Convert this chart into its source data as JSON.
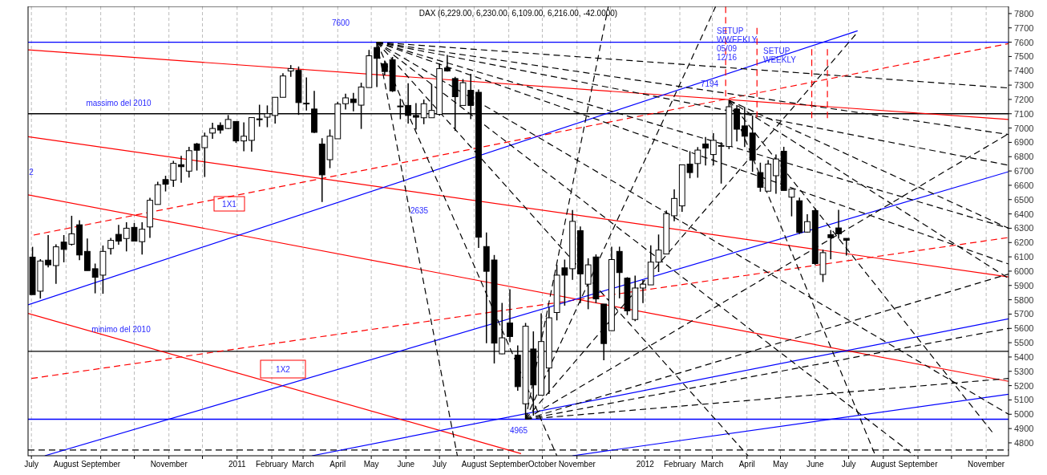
{
  "chart_data": {
    "type": "candlestick",
    "title": "DAX (6,229.00, 6,230.00, 6,109.00, 6,216.00, -42.0000)",
    "x": [
      "2010-07-02",
      "2010-07-09",
      "2010-07-16",
      "2010-07-23",
      "2010-07-30",
      "2010-08-06",
      "2010-08-13",
      "2010-08-20",
      "2010-08-27",
      "2010-09-03",
      "2010-09-10",
      "2010-09-17",
      "2010-09-24",
      "2010-10-01",
      "2010-10-08",
      "2010-10-15",
      "2010-10-22",
      "2010-10-29",
      "2010-11-05",
      "2010-11-12",
      "2010-11-19",
      "2010-11-26",
      "2010-12-03",
      "2010-12-10",
      "2010-12-17",
      "2010-12-24",
      "2010-12-31",
      "2011-01-07",
      "2011-01-14",
      "2011-01-21",
      "2011-01-28",
      "2011-02-04",
      "2011-02-11",
      "2011-02-18",
      "2011-02-25",
      "2011-03-04",
      "2011-03-11",
      "2011-03-18",
      "2011-03-25",
      "2011-04-01",
      "2011-04-08",
      "2011-04-15",
      "2011-04-22",
      "2011-04-29",
      "2011-05-06",
      "2011-05-13",
      "2011-05-20",
      "2011-05-27",
      "2011-06-03",
      "2011-06-10",
      "2011-06-17",
      "2011-06-24",
      "2011-07-01",
      "2011-07-08",
      "2011-07-15",
      "2011-07-22",
      "2011-07-29",
      "2011-08-05",
      "2011-08-12",
      "2011-08-19",
      "2011-08-26",
      "2011-09-02",
      "2011-09-09",
      "2011-09-16",
      "2011-09-23",
      "2011-09-30",
      "2011-10-07",
      "2011-10-14",
      "2011-10-21",
      "2011-10-28",
      "2011-11-04",
      "2011-11-11",
      "2011-11-18",
      "2011-11-25",
      "2011-12-02",
      "2011-12-09",
      "2011-12-16",
      "2011-12-23",
      "2011-12-30",
      "2012-01-06",
      "2012-01-13",
      "2012-01-20",
      "2012-01-27",
      "2012-02-03",
      "2012-02-10",
      "2012-02-17",
      "2012-02-24",
      "2012-03-02",
      "2012-03-09",
      "2012-03-16",
      "2012-03-23",
      "2012-03-30",
      "2012-04-06",
      "2012-04-13",
      "2012-04-20",
      "2012-04-27",
      "2012-05-04",
      "2012-05-11",
      "2012-05-18",
      "2012-05-25",
      "2012-06-01",
      "2012-06-08",
      "2012-06-15",
      "2012-06-22",
      "2012-06-29"
    ],
    "ohlc": [
      [
        6098,
        6170,
        5836,
        5836
      ],
      [
        5860,
        6084,
        5809,
        6071
      ],
      [
        6077,
        6252,
        6026,
        6044
      ],
      [
        6039,
        6188,
        5912,
        6170
      ],
      [
        6203,
        6252,
        6062,
        6152
      ],
      [
        6188,
        6387,
        6179,
        6261
      ],
      [
        6324,
        6355,
        6077,
        6113
      ],
      [
        6138,
        6228,
        6004,
        6004
      ],
      [
        6017,
        6053,
        5845,
        5957
      ],
      [
        5972,
        6179,
        5842,
        6138
      ],
      [
        6158,
        6233,
        6116,
        6215
      ],
      [
        6257,
        6324,
        6185,
        6210
      ],
      [
        6228,
        6342,
        6138,
        6300
      ],
      [
        6306,
        6336,
        6210,
        6210
      ],
      [
        6206,
        6342,
        6116,
        6293
      ],
      [
        6309,
        6513,
        6233,
        6495
      ],
      [
        6466,
        6625,
        6466,
        6604
      ],
      [
        6640,
        6667,
        6557,
        6607
      ],
      [
        6636,
        6771,
        6589,
        6753
      ],
      [
        6744,
        6806,
        6618,
        6730
      ],
      [
        6699,
        6869,
        6654,
        6842
      ],
      [
        6889,
        6896,
        6703,
        6845
      ],
      [
        6863,
        6968,
        6658,
        6943
      ],
      [
        6965,
        7037,
        6925,
        6997
      ],
      [
        7019,
        7040,
        6961,
        6986
      ],
      [
        6997,
        7091,
        6992,
        7060
      ],
      [
        7046,
        7046,
        6896,
        6910
      ],
      [
        6910,
        7040,
        6838,
        6943
      ],
      [
        6914,
        7076,
        6835,
        7073
      ],
      [
        7064,
        7163,
        7010,
        7064
      ],
      [
        7076,
        7158,
        7006,
        7100
      ],
      [
        7088,
        7215,
        7031,
        7215
      ],
      [
        7215,
        7383,
        7215,
        7364
      ],
      [
        7399,
        7440,
        7358,
        7415
      ],
      [
        7403,
        7430,
        7092,
        7178
      ],
      [
        7174,
        7354,
        7123,
        7174
      ],
      [
        7133,
        7260,
        6966,
        6970
      ],
      [
        6888,
        6929,
        6483,
        6673
      ],
      [
        6779,
        6990,
        6720,
        6943
      ],
      [
        6925,
        7184,
        6925,
        7168
      ],
      [
        7170,
        7240,
        7129,
        7211
      ],
      [
        7203,
        7246,
        7117,
        7178
      ],
      [
        7160,
        7317,
        6994,
        7287
      ],
      [
        7283,
        7546,
        7283,
        7505
      ],
      [
        7563,
        7600,
        7287,
        7487
      ],
      [
        7450,
        7471,
        7368,
        7395
      ],
      [
        7477,
        7497,
        7252,
        7260
      ],
      [
        7154,
        7205,
        7062,
        7154
      ],
      [
        7158,
        7313,
        7031,
        7088
      ],
      [
        7088,
        7174,
        6990,
        7076
      ],
      [
        7072,
        7199,
        7027,
        7170
      ],
      [
        7072,
        7307,
        7072,
        7123
      ],
      [
        7096,
        7450,
        7088,
        7415
      ],
      [
        7420,
        7511,
        7395,
        7399
      ],
      [
        7346,
        7358,
        6980,
        7219
      ],
      [
        7158,
        7342,
        7158,
        7317
      ],
      [
        7264,
        7379,
        7062,
        7158
      ],
      [
        7250,
        7270,
        6162,
        6237
      ],
      [
        6172,
        6270,
        5497,
        5999
      ],
      [
        6078,
        6113,
        5355,
        5497
      ],
      [
        5422,
        5778,
        5420,
        5534
      ],
      [
        5638,
        5873,
        5503,
        5543
      ],
      [
        5413,
        5481,
        5164,
        5193
      ],
      [
        5073,
        5638,
        4965,
        5615
      ],
      [
        5456,
        5579,
        4990,
        5205
      ],
      [
        5133,
        5705,
        5133,
        5508
      ],
      [
        5323,
        5747,
        5142,
        5674
      ],
      [
        5711,
        6044,
        5656,
        5972
      ],
      [
        6023,
        6081,
        5759,
        5972
      ],
      [
        6017,
        6427,
        5940,
        6348
      ],
      [
        6283,
        6312,
        5777,
        5981
      ],
      [
        5909,
        6090,
        5734,
        6044
      ],
      [
        6099,
        6117,
        5777,
        5806
      ],
      [
        5770,
        5770,
        5377,
        5494
      ],
      [
        5584,
        6171,
        5584,
        6081
      ],
      [
        6138,
        6171,
        5810,
        5990
      ],
      [
        5951,
        5958,
        5693,
        5723
      ],
      [
        5662,
        5969,
        5651,
        5882
      ],
      [
        5882,
        5938,
        5777,
        5909
      ],
      [
        5904,
        6180,
        5904,
        6063
      ],
      [
        6063,
        6256,
        5994,
        6147
      ],
      [
        6120,
        6424,
        6120,
        6402
      ],
      [
        6387,
        6572,
        6348,
        6508
      ],
      [
        6456,
        6743,
        6415,
        6743
      ],
      [
        6748,
        6838,
        6649,
        6689
      ],
      [
        6752,
        6867,
        6653,
        6846
      ],
      [
        6889,
        6937,
        6738,
        6860
      ],
      [
        6815,
        6964,
        6738,
        6914
      ],
      [
        6878,
        6901,
        6612,
        6878
      ],
      [
        6871,
        7194,
        6853,
        7149
      ],
      [
        7133,
        7160,
        6906,
        6992
      ],
      [
        7015,
        7146,
        6867,
        6943
      ],
      [
        6965,
        7088,
        6694,
        6775
      ],
      [
        6689,
        6758,
        6555,
        6586
      ],
      [
        6559,
        6776,
        6559,
        6748
      ],
      [
        6667,
        6816,
        6541,
        6784
      ],
      [
        6838,
        6869,
        6564,
        6564
      ],
      [
        6517,
        6573,
        6383,
        6573
      ],
      [
        6492,
        6514,
        6260,
        6270
      ],
      [
        6273,
        6398,
        6270,
        6346
      ],
      [
        6423,
        6441,
        6044,
        6053
      ],
      [
        5977,
        6150,
        5924,
        6129
      ],
      [
        6255,
        6287,
        6083,
        6234
      ],
      [
        6302,
        6429,
        6227,
        6261
      ],
      [
        6229,
        6230,
        6109,
        6216
      ]
    ],
    "xlim": [
      "2010-06-28",
      "2012-11-21"
    ],
    "xticks": [
      {
        "value": "2010-07-01",
        "label": "July"
      },
      {
        "value": "2010-08-01",
        "label": "August"
      },
      {
        "value": "2010-09-01",
        "label": "September"
      },
      {
        "value": "2010-10-01",
        "label": null
      },
      {
        "value": "2010-11-01",
        "label": "November"
      },
      {
        "value": "2010-12-01",
        "label": null
      },
      {
        "value": "2011-01-01",
        "label": "2011"
      },
      {
        "value": "2011-02-01",
        "label": "February"
      },
      {
        "value": "2011-03-01",
        "label": "March"
      },
      {
        "value": "2011-04-01",
        "label": "April"
      },
      {
        "value": "2011-05-01",
        "label": "May"
      },
      {
        "value": "2011-06-01",
        "label": "June"
      },
      {
        "value": "2011-07-01",
        "label": "July"
      },
      {
        "value": "2011-08-01",
        "label": "August"
      },
      {
        "value": "2011-09-01",
        "label": "September"
      },
      {
        "value": "2011-10-01",
        "label": "October"
      },
      {
        "value": "2011-11-01",
        "label": "November"
      },
      {
        "value": "2011-12-01",
        "label": null
      },
      {
        "value": "2012-01-01",
        "label": "2012"
      },
      {
        "value": "2012-02-01",
        "label": "February"
      },
      {
        "value": "2012-03-01",
        "label": "March"
      },
      {
        "value": "2012-04-01",
        "label": "April"
      },
      {
        "value": "2012-05-01",
        "label": "May"
      },
      {
        "value": "2012-06-01",
        "label": "June"
      },
      {
        "value": "2012-07-01",
        "label": "July"
      },
      {
        "value": "2012-08-01",
        "label": "August"
      },
      {
        "value": "2012-09-01",
        "label": "September"
      },
      {
        "value": "2012-10-01",
        "label": null
      },
      {
        "value": "2012-11-01",
        "label": "November"
      }
    ],
    "ylim": [
      4710,
      7850
    ],
    "yticks": [
      4800,
      4900,
      5000,
      5100,
      5200,
      5300,
      5400,
      5500,
      5600,
      5700,
      5800,
      5900,
      6000,
      6100,
      6200,
      6300,
      6400,
      6500,
      6600,
      6700,
      6800,
      6900,
      7000,
      7100,
      7200,
      7300,
      7400,
      7500,
      7600,
      7700,
      7800
    ],
    "grid": "x",
    "ref_lines": [
      {
        "axis": "y",
        "value": 7600,
        "color": "#0000ff",
        "line_style": "solid"
      },
      {
        "axis": "y",
        "value": 7100,
        "color": "#000000",
        "line_style": "solid"
      },
      {
        "axis": "y",
        "value": 5440,
        "color": "#000000",
        "line_style": "solid"
      },
      {
        "axis": "y",
        "value": 4965,
        "color": "#0000ff",
        "line_style": "solid"
      },
      {
        "axis": "y",
        "value": 4750,
        "color": "#000000",
        "line_style": "dashed"
      }
    ],
    "series": [
      {
        "type": "line",
        "color": "#ff0000",
        "line_style": "solid",
        "x": [
          "2010-06-28",
          "2012-11-21"
        ],
        "values": [
          7546,
          7060
        ]
      },
      {
        "type": "line",
        "color": "#ff0000",
        "line_style": "solid",
        "x": [
          "2010-06-28",
          "2012-11-21"
        ],
        "values": [
          6940,
          5960
        ]
      },
      {
        "type": "line",
        "color": "#ff0000",
        "line_style": "solid",
        "x": [
          "2010-06-28",
          "2012-11-21"
        ],
        "values": [
          6533,
          5230
        ]
      },
      {
        "type": "line",
        "color": "#ff0000",
        "line_style": "solid",
        "x": [
          "2010-06-28",
          "2011-09-12"
        ],
        "values": [
          5705,
          4725
        ]
      },
      {
        "type": "line",
        "color": "#ff0000",
        "line_style": "dashed",
        "x": [
          "2010-07-03",
          "2012-11-21"
        ],
        "values": [
          6252,
          7590
        ]
      },
      {
        "type": "line",
        "color": "#ff0000",
        "line_style": "dashed",
        "x": [
          "2010-07-01",
          "2012-11-21"
        ],
        "values": [
          5250,
          6235
        ]
      },
      {
        "type": "line",
        "color": "#0000ff",
        "line_style": "solid",
        "x": [
          "2010-06-28",
          "2012-07-09"
        ],
        "values": [
          5765,
          7680
        ]
      },
      {
        "type": "line",
        "color": "#0000ff",
        "line_style": "solid",
        "x": [
          "2010-07-13",
          "2012-11-21"
        ],
        "values": [
          4710,
          6695
        ]
      },
      {
        "type": "line",
        "color": "#0000ff",
        "line_style": "solid",
        "x": [
          "2011-03-09",
          "2012-11-21"
        ],
        "values": [
          4710,
          5667
        ]
      },
      {
        "type": "line",
        "color": "#0000ff",
        "line_style": "solid",
        "x": [
          "2011-10-28",
          "2012-11-21"
        ],
        "values": [
          4710,
          5140
        ]
      },
      {
        "type": "line",
        "color": "#000000",
        "line_style": "dashed",
        "x": [
          "2011-05-06",
          "2012-11-21"
        ],
        "values": [
          7600,
          7280
        ]
      },
      {
        "type": "line",
        "color": "#000000",
        "line_style": "dashed",
        "x": [
          "2011-05-06",
          "2012-11-21"
        ],
        "values": [
          7600,
          6955
        ]
      },
      {
        "type": "line",
        "color": "#000000",
        "line_style": "dashed",
        "x": [
          "2011-05-06",
          "2012-11-21"
        ],
        "values": [
          7600,
          6740
        ]
      },
      {
        "type": "line",
        "color": "#000000",
        "line_style": "dashed",
        "x": [
          "2011-05-06",
          "2012-11-21"
        ],
        "values": [
          7600,
          6300
        ]
      },
      {
        "type": "line",
        "color": "#000000",
        "line_style": "dashed",
        "x": [
          "2011-05-06",
          "2012-11-21"
        ],
        "values": [
          7600,
          6050
        ]
      },
      {
        "type": "line",
        "color": "#000000",
        "line_style": "dashed",
        "x": [
          "2011-05-06",
          "2012-11-21"
        ],
        "values": [
          7600,
          5000
        ]
      },
      {
        "type": "line",
        "color": "#000000",
        "line_style": "dashed",
        "x": [
          "2011-05-06",
          "2012-08-29"
        ],
        "values": [
          7600,
          4710
        ]
      },
      {
        "type": "line",
        "color": "#000000",
        "line_style": "dashed",
        "x": [
          "2011-05-06",
          "2012-04-02"
        ],
        "values": [
          7600,
          4710
        ]
      },
      {
        "type": "line",
        "color": "#000000",
        "line_style": "dashed",
        "x": [
          "2011-05-06",
          "2011-10-14"
        ],
        "values": [
          7600,
          4710
        ]
      },
      {
        "type": "line",
        "color": "#000000",
        "line_style": "dashed",
        "x": [
          "2011-05-06",
          "2011-07-17"
        ],
        "values": [
          7600,
          4710
        ]
      },
      {
        "type": "line",
        "color": "#000000",
        "line_style": "dashed",
        "x": [
          "2011-09-16",
          "2011-11-29"
        ],
        "values": [
          4965,
          7849
        ]
      },
      {
        "type": "line",
        "color": "#000000",
        "line_style": "dashed",
        "x": [
          "2011-09-16",
          "2012-03-04"
        ],
        "values": [
          4965,
          7849
        ]
      },
      {
        "type": "line",
        "color": "#000000",
        "line_style": "dashed",
        "x": [
          "2011-09-16",
          "2012-07-09"
        ],
        "values": [
          4965,
          7670
        ]
      },
      {
        "type": "line",
        "color": "#000000",
        "line_style": "dashed",
        "x": [
          "2011-09-16",
          "2012-11-21"
        ],
        "values": [
          4965,
          6960
        ]
      },
      {
        "type": "line",
        "color": "#000000",
        "line_style": "dashed",
        "x": [
          "2011-09-16",
          "2012-11-21"
        ],
        "values": [
          4965,
          5980
        ]
      },
      {
        "type": "line",
        "color": "#000000",
        "line_style": "dashed",
        "x": [
          "2011-09-16",
          "2012-11-21"
        ],
        "values": [
          4965,
          5600
        ]
      },
      {
        "type": "line",
        "color": "#000000",
        "line_style": "dashed",
        "x": [
          "2011-09-16",
          "2012-11-21"
        ],
        "values": [
          4965,
          5250
        ]
      },
      {
        "type": "line",
        "color": "#000000",
        "line_style": "dashed",
        "x": [
          "2012-03-16",
          "2012-11-21"
        ],
        "values": [
          7194,
          6300
        ]
      },
      {
        "type": "line",
        "color": "#000000",
        "line_style": "dashed",
        "x": [
          "2012-03-16",
          "2012-11-21"
        ],
        "values": [
          7194,
          5950
        ]
      },
      {
        "type": "line",
        "color": "#000000",
        "line_style": "dashed",
        "x": [
          "2012-03-16",
          "2012-11-08"
        ],
        "values": [
          7194,
          4860
        ]
      },
      {
        "type": "line",
        "color": "#000000",
        "line_style": "dashed",
        "x": [
          "2012-03-16",
          "2012-07-25"
        ],
        "values": [
          7194,
          4710
        ]
      },
      {
        "type": "line",
        "color": "#ff0000",
        "line_style": "dashed",
        "x": [
          "2012-03-13",
          "2012-03-13"
        ],
        "values": [
          7849,
          7220
        ]
      },
      {
        "type": "line",
        "color": "#ff0000",
        "line_style": "dashed",
        "x": [
          "2012-04-10",
          "2012-04-10"
        ],
        "values": [
          7700,
          7075
        ]
      },
      {
        "type": "line",
        "color": "#ff0000",
        "line_style": "dashed",
        "x": [
          "2012-05-29",
          "2012-05-29"
        ],
        "values": [
          7551,
          7064
        ]
      },
      {
        "type": "line",
        "color": "#ff0000",
        "line_style": "dashed",
        "x": [
          "2012-06-12",
          "2012-06-12"
        ],
        "values": [
          7551,
          7064
        ]
      }
    ],
    "annotations": [
      "7600",
      "massimo del 2010",
      "2",
      "1X1",
      "2635",
      "minimo del 2010",
      "1X2",
      "4965",
      "7194",
      "SETUP\nWWEEKLY\n05/09\n12/16",
      "SETUP\nWEEKLY"
    ]
  }
}
